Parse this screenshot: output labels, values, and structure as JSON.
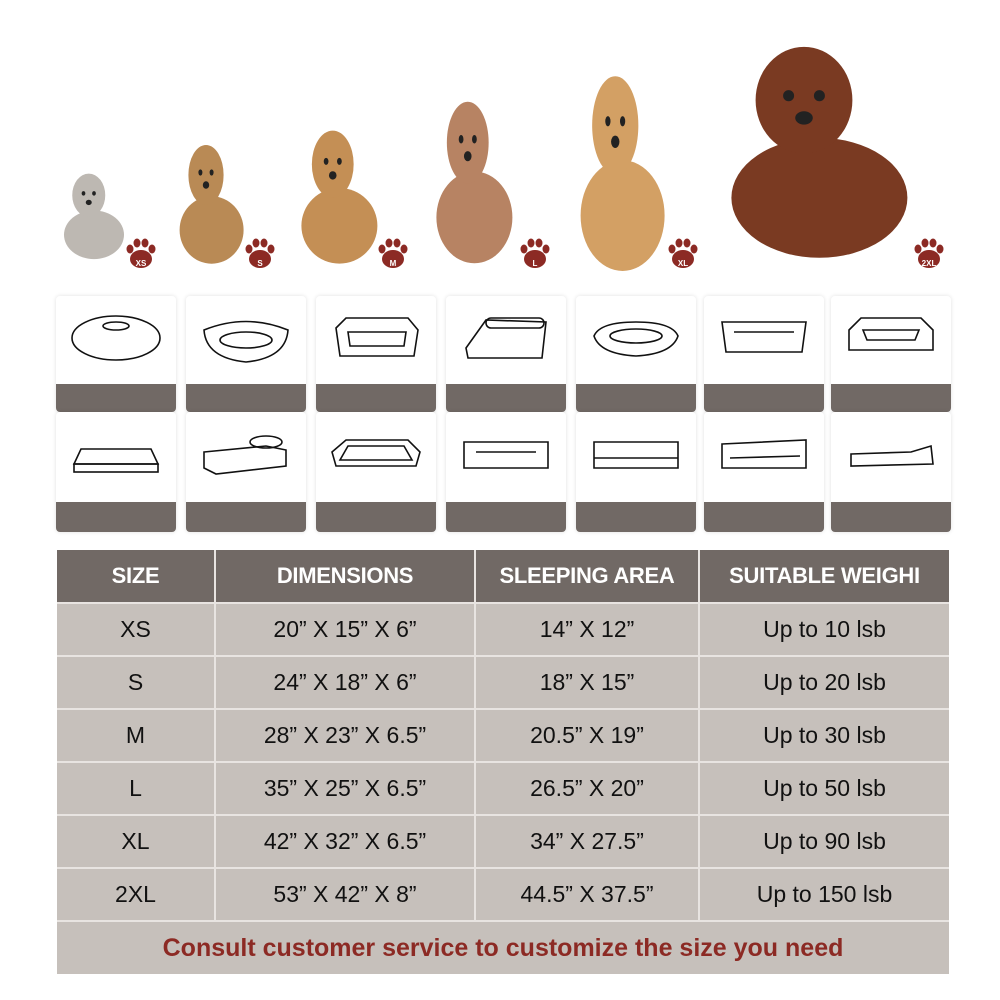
{
  "pets": [
    {
      "label": "XS",
      "animal": "cat"
    },
    {
      "label": "S",
      "animal": "yorkshire terrier"
    },
    {
      "label": "M",
      "animal": "poodle mix"
    },
    {
      "label": "L",
      "animal": "poodle"
    },
    {
      "label": "XL",
      "animal": "golden retriever"
    },
    {
      "label": "2XL",
      "animal": "cocker spaniel"
    }
  ],
  "colors": {
    "header": "#716965",
    "row": "#c6c0bb",
    "paw": "#8c2a24",
    "note": "#8c2a24"
  },
  "table": {
    "headers": [
      "SIZE",
      "DIMENSIONS",
      "SLEEPING AREA",
      "SUITABLE WEIGHI"
    ],
    "rows": [
      [
        "XS",
        "20” X 15” X 6”",
        "14” X 12”",
        "Up to 10 lsb"
      ],
      [
        "S",
        "24” X 18” X 6”",
        "18” X 15”",
        "Up to 20 lsb"
      ],
      [
        "M",
        "28” X 23” X 6.5”",
        "20.5” X 19”",
        "Up to 30 lsb"
      ],
      [
        "L",
        "35” X 25” X 6.5”",
        "26.5” X 20”",
        "Up to 50 lsb"
      ],
      [
        "XL",
        "42” X 32” X 6.5”",
        "34” X 27.5”",
        "Up to 90 lsb"
      ],
      [
        "2XL",
        "53” X 42” X 8”",
        "44.5” X 37.5”",
        "Up to 150 lsb"
      ]
    ],
    "note": "Consult customer service to customize the size you need"
  }
}
